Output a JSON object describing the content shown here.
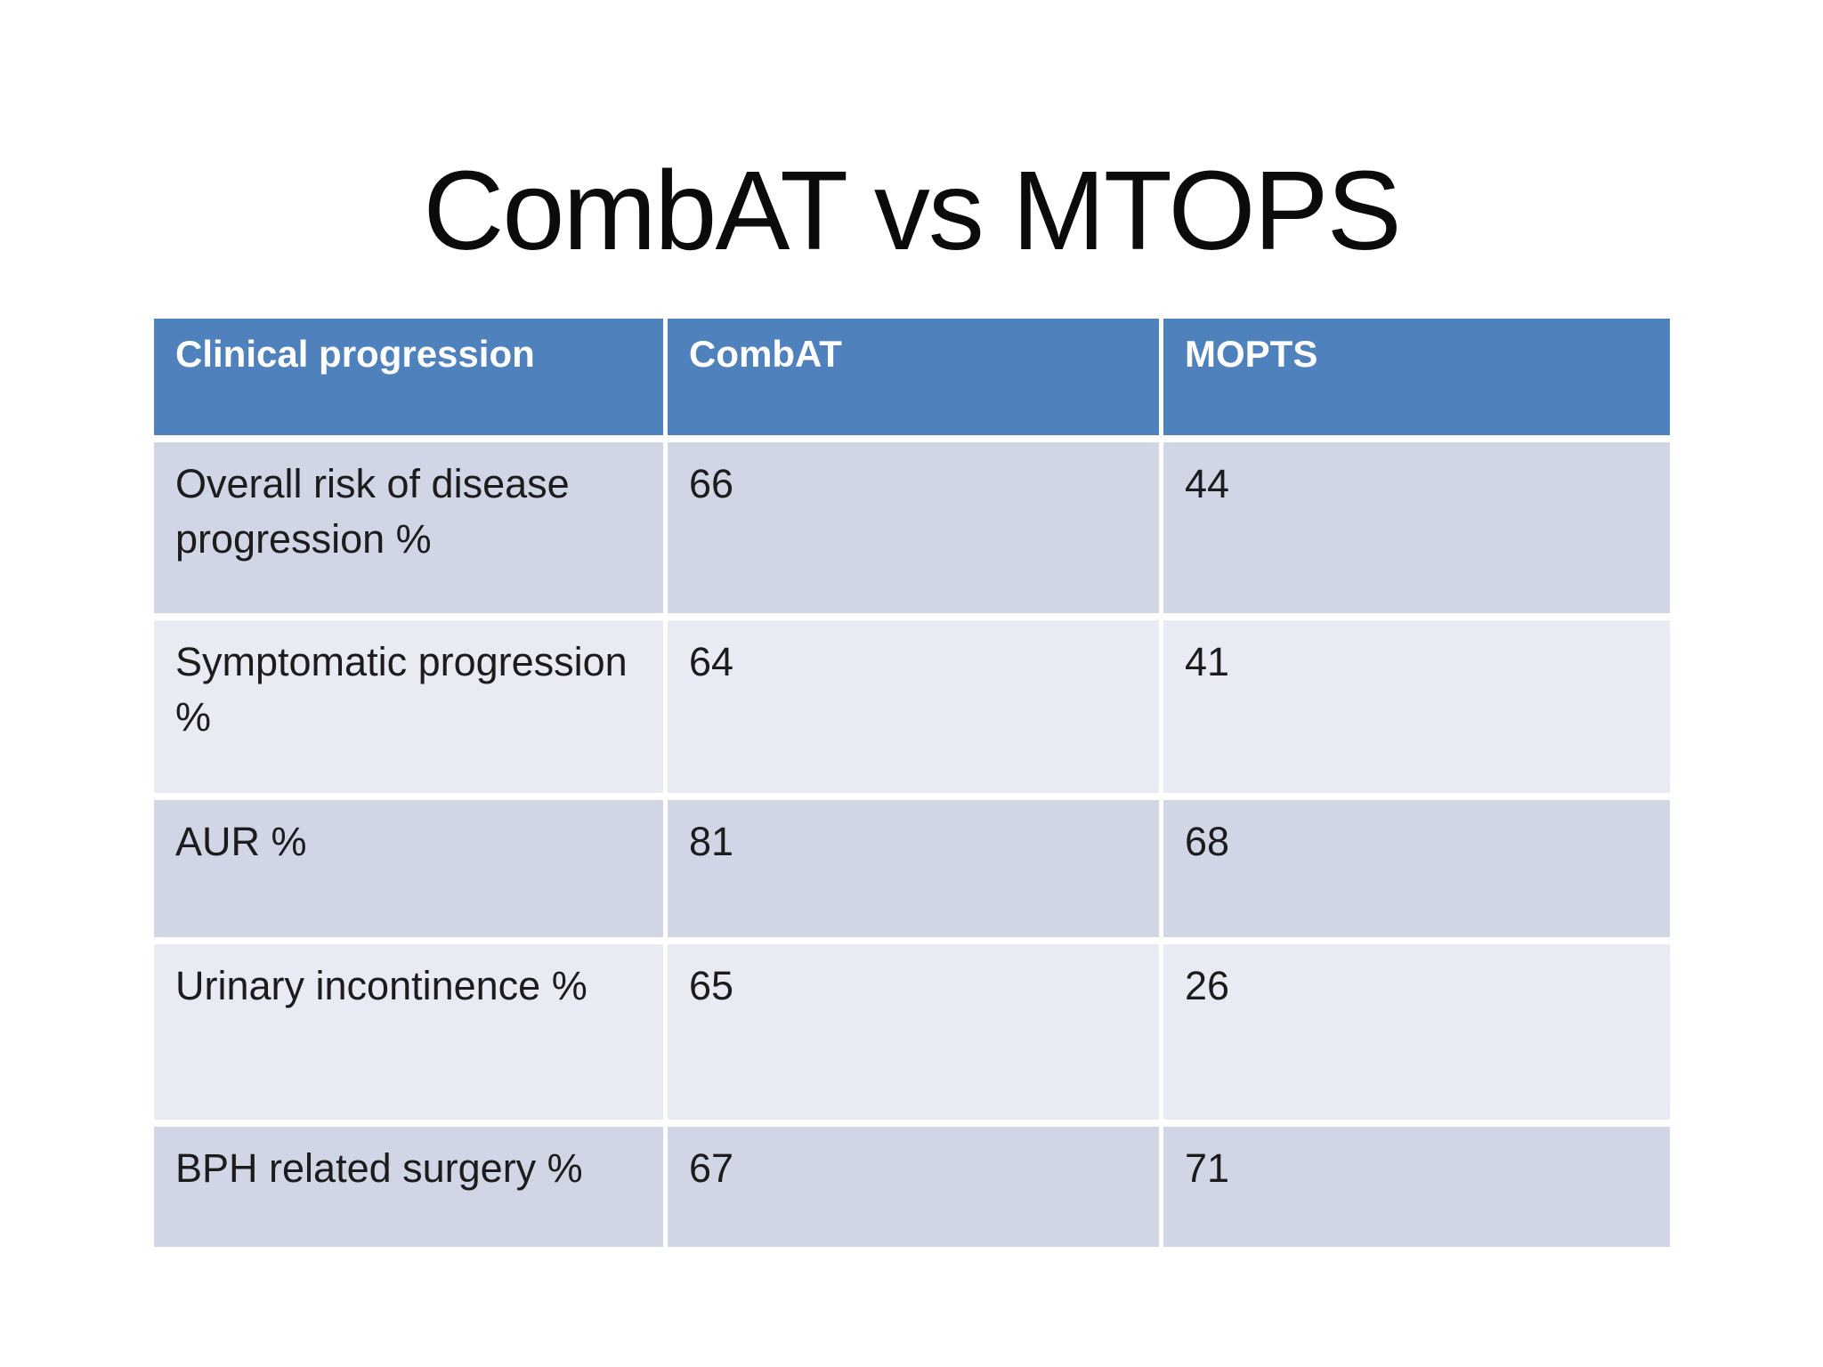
{
  "slide": {
    "title": "CombAT vs MTOPS"
  },
  "table": {
    "columns": [
      "Clinical progression",
      "CombAT",
      "MOPTS"
    ],
    "rows": [
      {
        "label": "Overall risk of disease progression %",
        "combat": "66",
        "mopts": "44"
      },
      {
        "label": "Symptomatic progression %",
        "combat": "64",
        "mopts": "41"
      },
      {
        "label": "AUR %",
        "combat": "81",
        "mopts": "68"
      },
      {
        "label": "Urinary incontinence %",
        "combat": "65",
        "mopts": "26"
      },
      {
        "label": "BPH related surgery %",
        "combat": "67",
        "mopts": "71"
      }
    ]
  },
  "colors": {
    "header_bg": "#4F81BD",
    "header_text": "#FFFFFF",
    "row_band_dark": "#D0D6E6",
    "row_band_light": "#E9EBF4",
    "body_text": "#1C1C1C",
    "title_text": "#0B0B0B",
    "cell_divider": "#FFFFFF"
  }
}
